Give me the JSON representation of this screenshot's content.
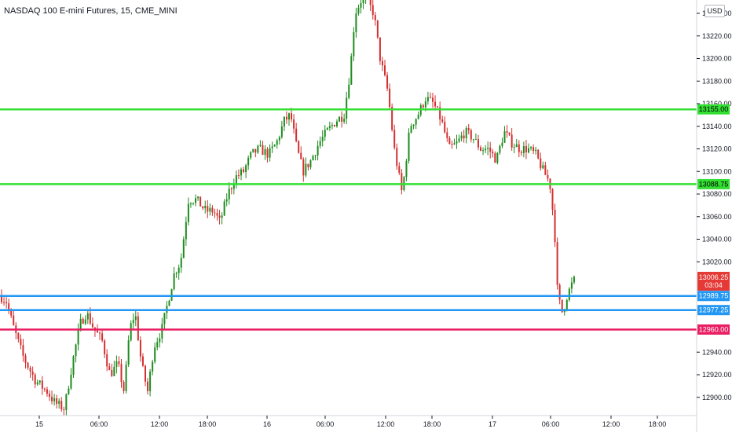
{
  "chart_title": "NASDAQ 100 E-mini Futures, 15, CME_MINI",
  "currency": "USD",
  "colors": {
    "up": "#26a69a",
    "up_candle": "#1e8b1e",
    "down_candle": "#d32f2f",
    "green_line": "#33e033",
    "blue_line": "#2196f3",
    "red_line": "#e91e63",
    "last_price": "#e53935"
  },
  "y_axis": {
    "labels": [
      "13240.00",
      "13220.00",
      "13200.00",
      "13180.00",
      "13160.00",
      "13140.00",
      "13120.00",
      "13100.00",
      "13080.00",
      "13060.00",
      "13040.00",
      "13020.00",
      "12940.00",
      "12920.00",
      "12900.00"
    ],
    "values": [
      13240,
      13220,
      13200,
      13180,
      13160,
      13140,
      13120,
      13100,
      13080,
      13060,
      13040,
      13020,
      12940,
      12920,
      12900
    ]
  },
  "x_axis": {
    "labels": [
      "15",
      "06:00",
      "12:00",
      "18:00",
      "16",
      "06:00",
      "12:00",
      "18:00",
      "17",
      "06:00",
      "12:00",
      "18:00"
    ]
  },
  "chart_data": {
    "type": "candlestick",
    "title": "NASDAQ 100 E-mini Futures, 15, CME_MINI",
    "ylim": [
      12888,
      13252
    ],
    "horizontal_lines": [
      {
        "value": 13155.0,
        "label": "13155.00",
        "color": "#33e033"
      },
      {
        "value": 13088.75,
        "label": "13088.75",
        "color": "#33e033"
      },
      {
        "value": 12989.75,
        "label": "12989.75",
        "color": "#2196f3"
      },
      {
        "value": 12977.25,
        "label": "12977.25",
        "color": "#2196f3"
      },
      {
        "value": 12960.0,
        "label": "12960.00",
        "color": "#e91e63"
      }
    ],
    "last_price": {
      "value": 13006.25,
      "label": "13006.25",
      "countdown": "03:04"
    },
    "approx_close_path": [
      [
        0,
        12990
      ],
      [
        8,
        12985
      ],
      [
        18,
        12960
      ],
      [
        30,
        12935
      ],
      [
        45,
        12915
      ],
      [
        60,
        12905
      ],
      [
        70,
        12895
      ],
      [
        82,
        12890
      ],
      [
        92,
        12930
      ],
      [
        102,
        12965
      ],
      [
        110,
        12975
      ],
      [
        120,
        12960
      ],
      [
        130,
        12950
      ],
      [
        140,
        12920
      ],
      [
        150,
        12930
      ],
      [
        158,
        12905
      ],
      [
        165,
        12960
      ],
      [
        172,
        12975
      ],
      [
        180,
        12930
      ],
      [
        188,
        12905
      ],
      [
        196,
        12945
      ],
      [
        206,
        12960
      ],
      [
        214,
        12985
      ],
      [
        222,
        13010
      ],
      [
        230,
        13020
      ],
      [
        240,
        13075
      ],
      [
        250,
        13075
      ],
      [
        262,
        13065
      ],
      [
        272,
        13065
      ],
      [
        280,
        13055
      ],
      [
        290,
        13080
      ],
      [
        300,
        13095
      ],
      [
        310,
        13100
      ],
      [
        320,
        13115
      ],
      [
        330,
        13120
      ],
      [
        342,
        13115
      ],
      [
        352,
        13125
      ],
      [
        362,
        13145
      ],
      [
        370,
        13150
      ],
      [
        378,
        13120
      ],
      [
        386,
        13100
      ],
      [
        396,
        13110
      ],
      [
        406,
        13125
      ],
      [
        416,
        13135
      ],
      [
        428,
        13145
      ],
      [
        438,
        13150
      ],
      [
        446,
        13190
      ],
      [
        452,
        13240
      ],
      [
        460,
        13252
      ],
      [
        468,
        13250
      ],
      [
        476,
        13240
      ],
      [
        484,
        13200
      ],
      [
        494,
        13170
      ],
      [
        502,
        13120
      ],
      [
        512,
        13080
      ],
      [
        522,
        13140
      ],
      [
        532,
        13150
      ],
      [
        542,
        13165
      ],
      [
        552,
        13160
      ],
      [
        562,
        13145
      ],
      [
        572,
        13120
      ],
      [
        582,
        13125
      ],
      [
        592,
        13135
      ],
      [
        602,
        13130
      ],
      [
        612,
        13120
      ],
      [
        622,
        13120
      ],
      [
        632,
        13110
      ],
      [
        642,
        13135
      ],
      [
        652,
        13125
      ],
      [
        662,
        13120
      ],
      [
        672,
        13120
      ],
      [
        682,
        13115
      ],
      [
        692,
        13100
      ],
      [
        700,
        13090
      ],
      [
        706,
        13050
      ],
      [
        710,
        12990
      ],
      [
        716,
        12975
      ],
      [
        722,
        12990
      ],
      [
        728,
        13000
      ],
      [
        733,
        13006
      ]
    ]
  }
}
